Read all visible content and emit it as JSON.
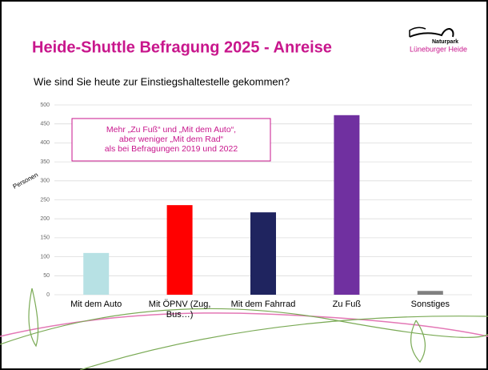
{
  "slide_title": "Heide-Shuttle Befragung 2025 - Anreise",
  "logo": {
    "line1": "Naturpark",
    "line2": "Lüneburger Heide"
  },
  "chart_data": {
    "type": "bar",
    "title": "Wie sind Sie heute zur Einstiegshaltestelle gekommen?",
    "y_label": "Personen",
    "annotation": [
      "Mehr „Zu Fuß“ und „Mit dem Auto“,",
      "aber weniger „Mit dem Rad“",
      "als bei Befragungen 2019 und 2022"
    ],
    "categories": [
      "Mit dem Auto",
      "Mit ÖPNV (Zug, Bus…)",
      "Mit dem Fahrrad",
      "Zu Fuß",
      "Sonstiges"
    ],
    "values": [
      110,
      236,
      217,
      473,
      10
    ],
    "colors": [
      "#b7e1e4",
      "#ff0000",
      "#1f245f",
      "#7030a0",
      "#808080"
    ],
    "ylim": [
      0,
      500
    ],
    "yticks": [
      0,
      50,
      100,
      150,
      200,
      250,
      300,
      350,
      400,
      450,
      500
    ],
    "grid": true
  }
}
